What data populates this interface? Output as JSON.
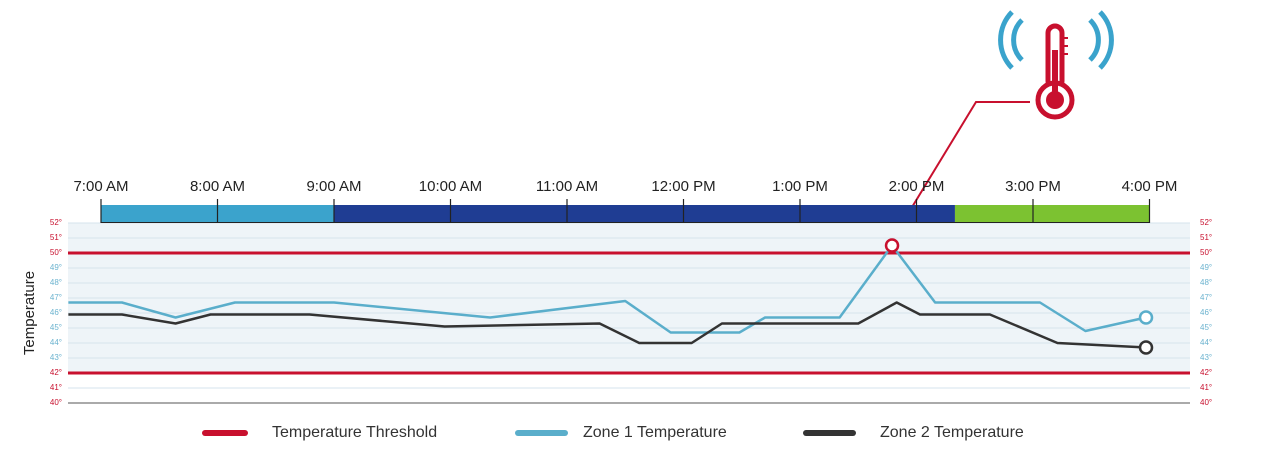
{
  "chart_data": {
    "type": "line",
    "y_axis_label": "Temperature",
    "xlim": [
      6.72,
      16.35
    ],
    "xticks": [
      {
        "value": 7,
        "label": "7:00 AM"
      },
      {
        "value": 8,
        "label": "8:00 AM"
      },
      {
        "value": 9,
        "label": "9:00 AM"
      },
      {
        "value": 10,
        "label": "10:00 AM"
      },
      {
        "value": 11,
        "label": "11:00 AM"
      },
      {
        "value": 12,
        "label": "12:00 PM"
      },
      {
        "value": 13,
        "label": "1:00 PM"
      },
      {
        "value": 14,
        "label": "2:00 PM"
      },
      {
        "value": 15,
        "label": "3:00 PM"
      },
      {
        "value": 16,
        "label": "4:00 PM"
      }
    ],
    "ylim": [
      40,
      52
    ],
    "yticks": [
      {
        "value": 40,
        "label": "40°"
      },
      {
        "value": 41,
        "label": "41°"
      },
      {
        "value": 42,
        "label": "42°"
      },
      {
        "value": 43,
        "label": "43°"
      },
      {
        "value": 44,
        "label": "44°"
      },
      {
        "value": 45,
        "label": "45°"
      },
      {
        "value": 46,
        "label": "46°"
      },
      {
        "value": 47,
        "label": "47°"
      },
      {
        "value": 48,
        "label": "48°"
      },
      {
        "value": 49,
        "label": "49°"
      },
      {
        "value": 50,
        "label": "50°"
      },
      {
        "value": 51,
        "label": "51°"
      },
      {
        "value": 52,
        "label": "52°"
      }
    ],
    "grid": true,
    "status_bar": [
      {
        "start": 7,
        "end": 9,
        "color": "#3ba3cc"
      },
      {
        "start": 9,
        "end": 14.33,
        "color": "#1f3d93"
      },
      {
        "start": 14.33,
        "end": 16,
        "color": "#7cc231"
      }
    ],
    "threshold": {
      "name": "Temperature Threshold",
      "color": "#c8102e",
      "values": [
        42,
        50
      ]
    },
    "series": [
      {
        "name": "Zone 1 Temperature",
        "color": "#5aaecb",
        "x": [
          6.72,
          7.18,
          7.64,
          8.15,
          9.0,
          10.34,
          11.5,
          11.89,
          12.48,
          12.7,
          13.34,
          13.79,
          14.16,
          15.06,
          15.45,
          15.97
        ],
        "values": [
          46.7,
          46.7,
          45.7,
          46.7,
          46.7,
          45.7,
          46.8,
          44.7,
          44.7,
          45.7,
          45.7,
          50.5,
          46.7,
          46.7,
          44.8,
          45.7
        ]
      },
      {
        "name": "Zone 2 Temperature",
        "color": "#333333",
        "x": [
          6.72,
          7.18,
          7.64,
          7.94,
          8.79,
          9.95,
          11.28,
          11.62,
          12.07,
          12.33,
          13.5,
          13.83,
          14.03,
          14.63,
          15.21,
          15.97
        ],
        "values": [
          45.9,
          45.9,
          45.3,
          45.9,
          45.9,
          45.1,
          45.3,
          44.0,
          44.0,
          45.3,
          45.3,
          46.7,
          45.9,
          45.9,
          44.0,
          43.7
        ]
      }
    ]
  }
}
